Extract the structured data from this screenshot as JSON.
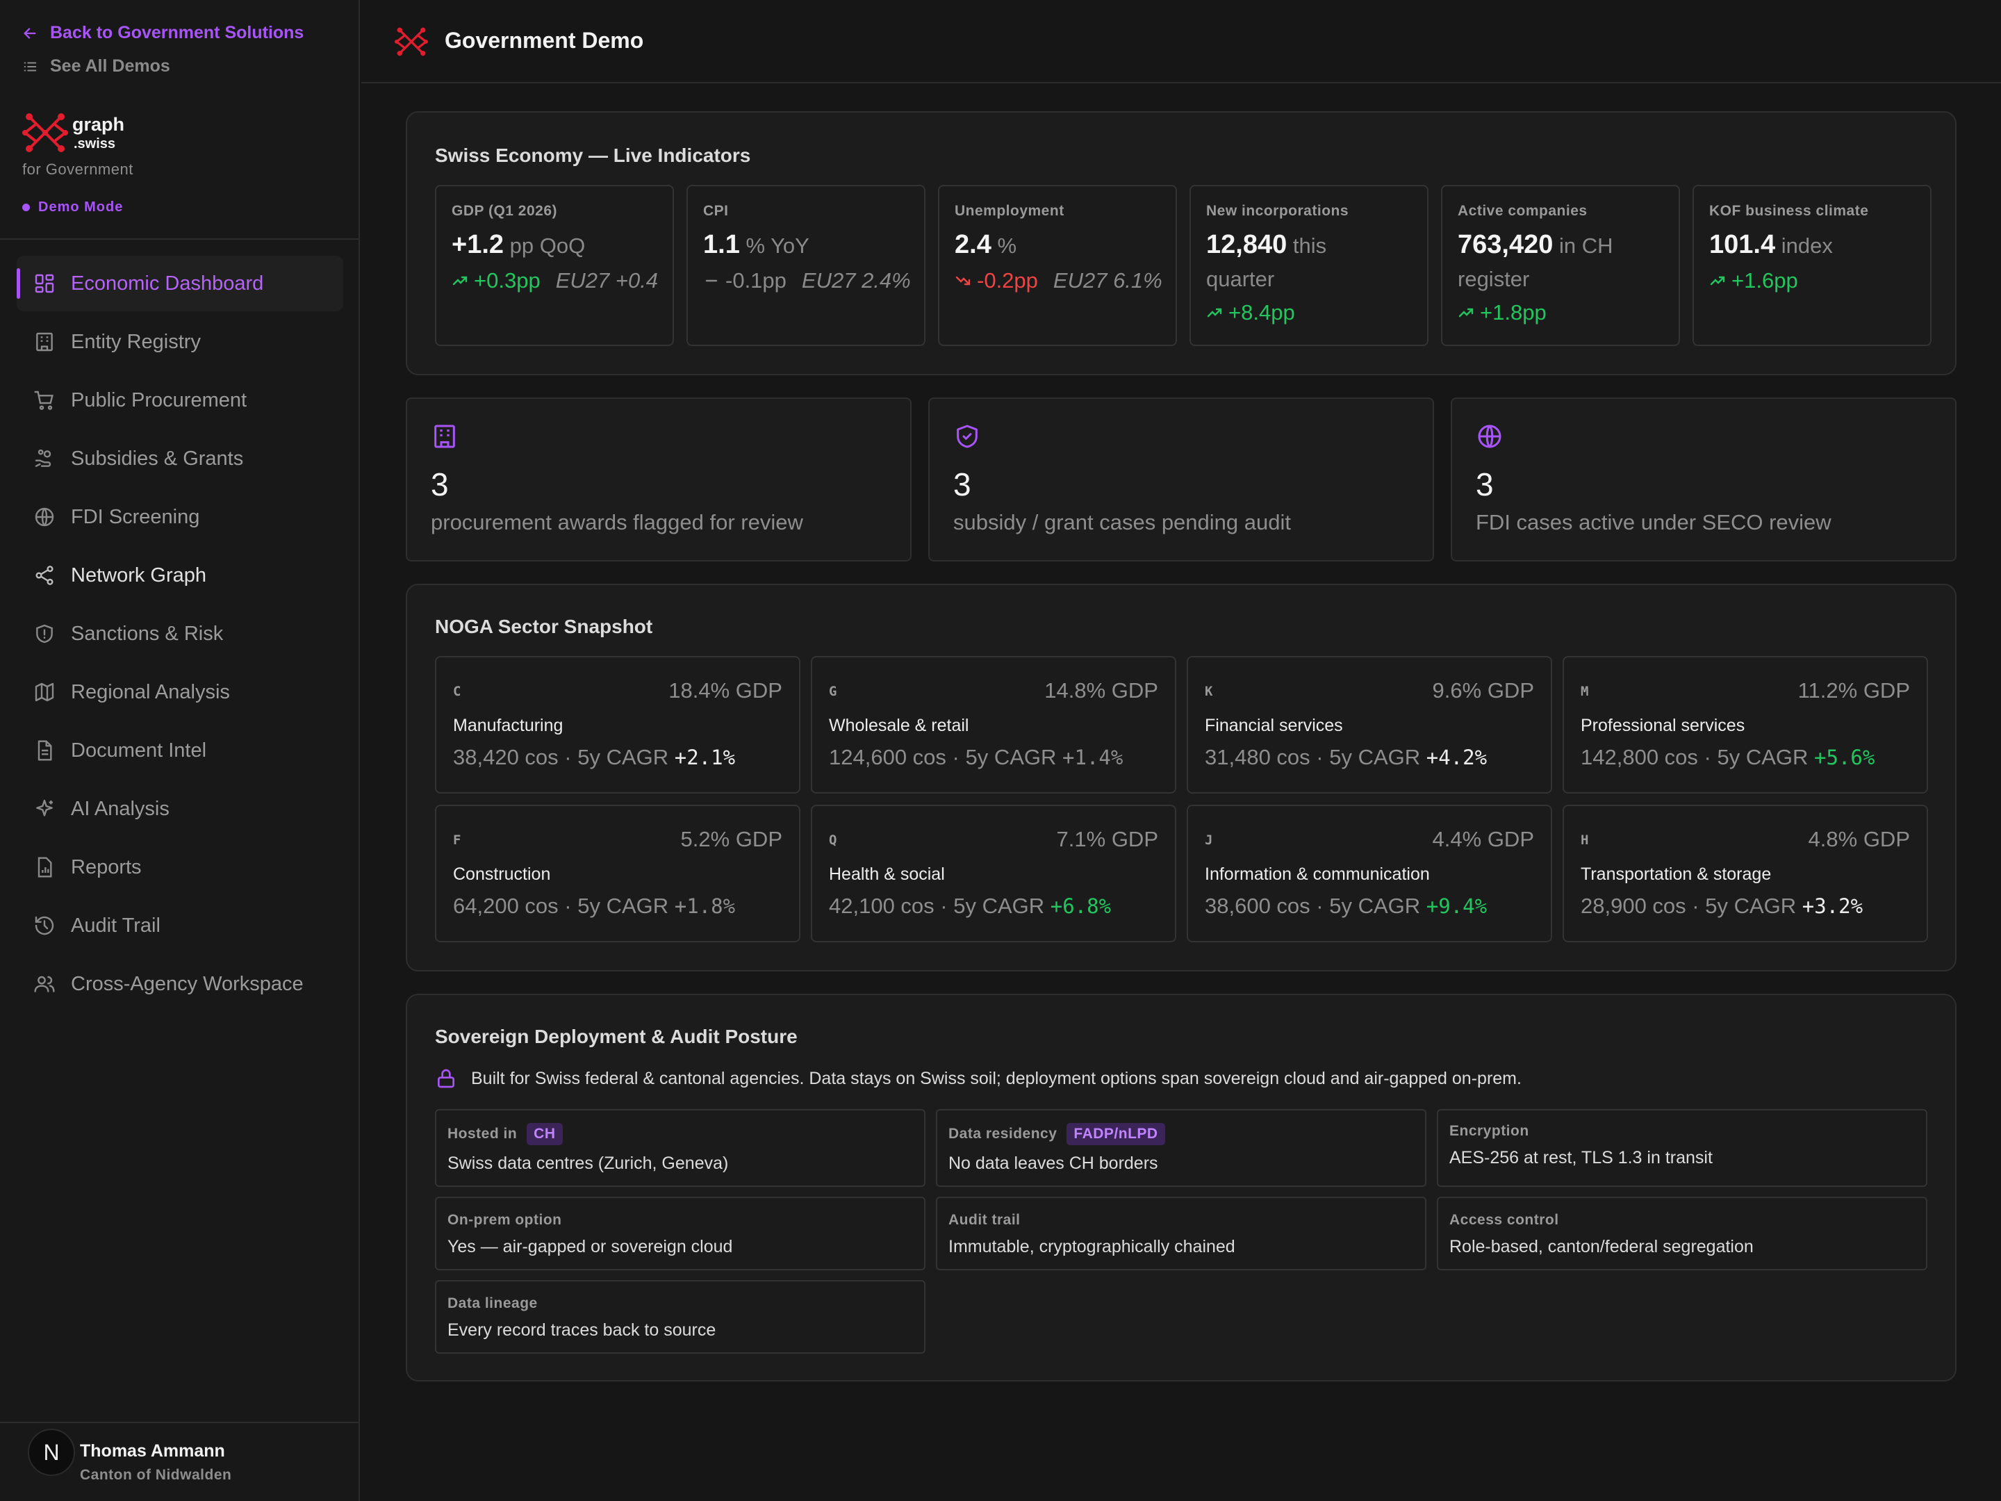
{
  "sidebar": {
    "back_link": "Back to Government Solutions",
    "all_demos": "See All Demos",
    "brand_name": "graph",
    "brand_sub": ".swiss",
    "brand_tagline": "for Government",
    "demo_mode": "Demo Mode",
    "items": [
      {
        "label": "Economic Dashboard",
        "icon": "dashboard-icon"
      },
      {
        "label": "Entity Registry",
        "icon": "building-icon"
      },
      {
        "label": "Public Procurement",
        "icon": "cart-icon"
      },
      {
        "label": "Subsidies & Grants",
        "icon": "hand-coins-icon"
      },
      {
        "label": "FDI Screening",
        "icon": "globe-icon"
      },
      {
        "label": "Network Graph",
        "icon": "share-icon"
      },
      {
        "label": "Sanctions & Risk",
        "icon": "shield-alert-icon"
      },
      {
        "label": "Regional Analysis",
        "icon": "map-icon"
      },
      {
        "label": "Document Intel",
        "icon": "document-icon"
      },
      {
        "label": "AI Analysis",
        "icon": "sparkles-icon"
      },
      {
        "label": "Reports",
        "icon": "report-icon"
      },
      {
        "label": "Audit Trail",
        "icon": "history-icon"
      },
      {
        "label": "Cross-Agency Workspace",
        "icon": "users-icon"
      }
    ],
    "user": {
      "initial": "N",
      "name": "Thomas Ammann",
      "org": "Canton of Nidwalden"
    }
  },
  "header": {
    "title": "Government Demo"
  },
  "indicators": {
    "title": "Swiss Economy — Live Indicators",
    "cards": [
      {
        "label": "GDP (Q1 2026)",
        "value": "+1.2",
        "unit": "pp QoQ",
        "trend": "+0.3pp",
        "trend_dir": "up",
        "eu": "EU27 +0.4"
      },
      {
        "label": "CPI",
        "value": "1.1",
        "unit": "% YoY",
        "trend": "-0.1pp",
        "trend_dir": "flat",
        "eu": "EU27 2.4%"
      },
      {
        "label": "Unemployment",
        "value": "2.4",
        "unit": "%",
        "trend": "-0.2pp",
        "trend_dir": "down",
        "eu": "EU27 6.1%"
      },
      {
        "label": "New incorporations",
        "value": "12,840",
        "unit": "this quarter",
        "trend": "+8.4pp",
        "trend_dir": "up",
        "eu": ""
      },
      {
        "label": "Active companies",
        "value": "763,420",
        "unit": "in CH register",
        "trend": "+1.8pp",
        "trend_dir": "up",
        "eu": ""
      },
      {
        "label": "KOF business climate",
        "value": "101.4",
        "unit": "index",
        "trend": "+1.6pp",
        "trend_dir": "up",
        "eu": ""
      }
    ]
  },
  "alerts": [
    {
      "count": "3",
      "text": "procurement awards flagged for review",
      "icon": "building-icon"
    },
    {
      "count": "3",
      "text": "subsidy / grant cases pending audit",
      "icon": "shield-check-icon"
    },
    {
      "count": "3",
      "text": "FDI cases active under SECO review",
      "icon": "globe-icon"
    }
  ],
  "sectors": {
    "title": "NOGA Sector Snapshot",
    "items": [
      {
        "code": "C",
        "gdp": "18.4% GDP",
        "name": "Manufacturing",
        "cos": "38,420 cos · 5y CAGR",
        "cagr": "+2.1%"
      },
      {
        "code": "G",
        "gdp": "14.8% GDP",
        "name": "Wholesale & retail",
        "cos": "124,600 cos · 5y CAGR",
        "cagr": "+1.4%"
      },
      {
        "code": "K",
        "gdp": "9.6% GDP",
        "name": "Financial services",
        "cos": "31,480 cos · 5y CAGR",
        "cagr": "+4.2%"
      },
      {
        "code": "M",
        "gdp": "11.2% GDP",
        "name": "Professional services",
        "cos": "142,800 cos · 5y CAGR",
        "cagr": "+5.6%"
      },
      {
        "code": "F",
        "gdp": "5.2% GDP",
        "name": "Construction",
        "cos": "64,200 cos · 5y CAGR",
        "cagr": "+1.8%"
      },
      {
        "code": "Q",
        "gdp": "7.1% GDP",
        "name": "Health & social",
        "cos": "42,100 cos · 5y CAGR",
        "cagr": "+6.8%"
      },
      {
        "code": "J",
        "gdp": "4.4% GDP",
        "name": "Information & communication",
        "cos": "38,600 cos · 5y CAGR",
        "cagr": "+9.4%"
      },
      {
        "code": "H",
        "gdp": "4.8% GDP",
        "name": "Transportation & storage",
        "cos": "28,900 cos · 5y CAGR",
        "cagr": "+3.2%"
      }
    ]
  },
  "sovereign": {
    "title": "Sovereign Deployment & Audit Posture",
    "note": "Built for Swiss federal & cantonal agencies. Data stays on Swiss soil; deployment options span sovereign cloud and air-gapped on-prem.",
    "items": [
      {
        "label": "Hosted in",
        "badge": "CH",
        "value": "Swiss data centres (Zurich, Geneva)"
      },
      {
        "label": "Data residency",
        "badge": "FADP/nLPD",
        "value": "No data leaves CH borders"
      },
      {
        "label": "Encryption",
        "badge": "",
        "value": "AES-256 at rest, TLS 1.3 in transit"
      },
      {
        "label": "On-prem option",
        "badge": "",
        "value": "Yes — air-gapped or sovereign cloud"
      },
      {
        "label": "Audit trail",
        "badge": "",
        "value": "Immutable, cryptographically chained"
      },
      {
        "label": "Access control",
        "badge": "",
        "value": "Role-based, canton/federal segregation"
      },
      {
        "label": "Data lineage",
        "badge": "",
        "value": "Every record traces back to source"
      }
    ]
  },
  "colors": {
    "accent": "#a855f7",
    "positive": "#22c55e",
    "negative": "#ef4444",
    "logo": "#e11d2e"
  }
}
